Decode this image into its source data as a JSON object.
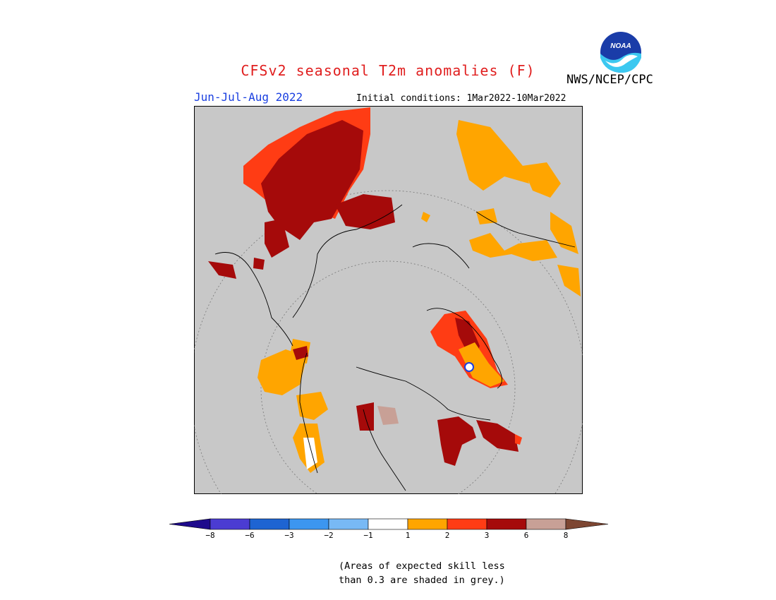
{
  "title": "CFSv2 seasonal T2m anomalies (F)",
  "agency": "NWS/NCEP/CPC",
  "logo_text": "NOAA",
  "season": "Jun-Jul-Aug 2022",
  "initial_conditions": "Initial conditions: 1Mar2022-10Mar2022",
  "colors": {
    "title": "#e01e1e",
    "season": "#1a3fe0",
    "background": "#c8c8c8",
    "skill_mask_grey": "#c8c8c8"
  },
  "colorbar": {
    "colors": [
      "#1e0a8c",
      "#4b3cd2",
      "#1e64d2",
      "#3c96f0",
      "#78b9f5",
      "#ffffff",
      "#ffa500",
      "#ff3c14",
      "#a50a0a",
      "#c8a096",
      "#7d4632"
    ],
    "labels": [
      "−8",
      "−6",
      "−3",
      "−2",
      "−1",
      "1",
      "2",
      "3",
      "6",
      "8"
    ]
  },
  "note": [
    "(Areas of expected skill less",
    "than 0.3 are shaded in grey.)"
  ]
}
